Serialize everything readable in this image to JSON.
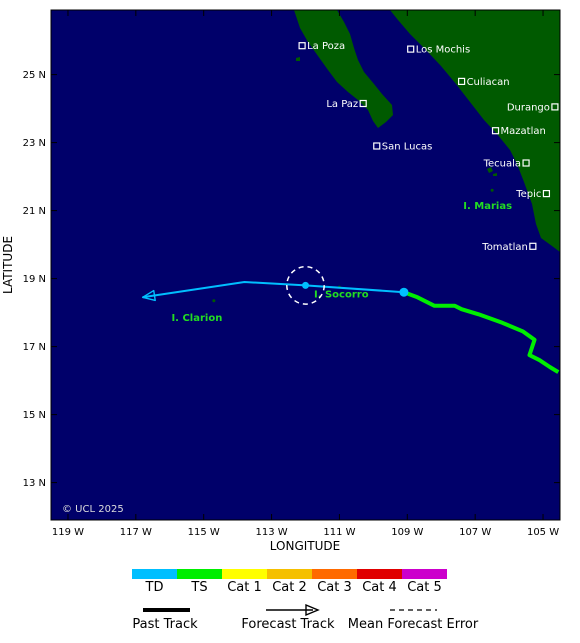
{
  "axes": {
    "xlabel": "LONGITUDE",
    "ylabel": "LATITUDE",
    "lon_range": [
      -119.5,
      -104.5
    ],
    "lat_range": [
      11.9,
      26.9
    ],
    "lon_ticks": [
      {
        "value": -119,
        "label": "119 W"
      },
      {
        "value": -117,
        "label": "117 W"
      },
      {
        "value": -115,
        "label": "115 W"
      },
      {
        "value": -113,
        "label": "113 W"
      },
      {
        "value": -111,
        "label": "111 W"
      },
      {
        "value": -109,
        "label": "109 W"
      },
      {
        "value": -107,
        "label": "107 W"
      },
      {
        "value": -105,
        "label": "105 W"
      }
    ],
    "lat_ticks": [
      {
        "value": 25,
        "label": "25 N"
      },
      {
        "value": 23,
        "label": "23 N"
      },
      {
        "value": 21,
        "label": "21 N"
      },
      {
        "value": 19,
        "label": "19 N"
      },
      {
        "value": 17,
        "label": "17 N"
      },
      {
        "value": 15,
        "label": "15 N"
      },
      {
        "value": 13,
        "label": "13 N"
      }
    ]
  },
  "colors": {
    "ocean": "#00006a",
    "land": "#005a00",
    "frame": "#000000",
    "label": "#ffffff",
    "island_label": "#22dd22",
    "TD": "#00bfff",
    "TS": "#00ee00",
    "Cat 1": "#ffff00",
    "Cat 2": "#f5c000",
    "Cat 3": "#ff6a00",
    "Cat 4": "#e00000",
    "Cat 5": "#cc00cc"
  },
  "cities": [
    {
      "name": "La Poza",
      "lon": -112.1,
      "lat": 25.85,
      "label_side": "right"
    },
    {
      "name": "Los Mochis",
      "lon": -108.9,
      "lat": 25.75,
      "label_side": "right"
    },
    {
      "name": "Culiacan",
      "lon": -107.4,
      "lat": 24.8,
      "label_side": "right"
    },
    {
      "name": "La Paz",
      "lon": -110.3,
      "lat": 24.15,
      "label_side": "left"
    },
    {
      "name": "Durango",
      "lon": -104.65,
      "lat": 24.05,
      "label_side": "left"
    },
    {
      "name": "Mazatlan",
      "lon": -106.4,
      "lat": 23.35,
      "label_side": "right"
    },
    {
      "name": "San Lucas",
      "lon": -109.9,
      "lat": 22.9,
      "label_side": "right"
    },
    {
      "name": "Tecuala",
      "lon": -105.5,
      "lat": 22.4,
      "label_side": "left"
    },
    {
      "name": "Tepic",
      "lon": -104.9,
      "lat": 21.5,
      "label_side": "left"
    },
    {
      "name": "Tomatlan",
      "lon": -105.3,
      "lat": 19.95,
      "label_side": "left"
    }
  ],
  "islands": [
    {
      "name": "I. Socorro",
      "lon": -111.0,
      "lat": 18.75,
      "label_lon": -111.75,
      "label_lat": 18.45
    },
    {
      "name": "I. Clarion",
      "lon": -114.7,
      "lat": 18.35,
      "label_lon": -115.95,
      "label_lat": 17.75
    },
    {
      "name": "I. Marias",
      "lon": -106.5,
      "lat": 21.6,
      "label_lon": -107.35,
      "label_lat": 21.05
    }
  ],
  "past_track": {
    "points": [
      {
        "lon": -104.55,
        "lat": 16.25
      },
      {
        "lon": -104.8,
        "lat": 16.4
      },
      {
        "lon": -105.1,
        "lat": 16.6
      },
      {
        "lon": -105.4,
        "lat": 16.75
      },
      {
        "lon": -105.25,
        "lat": 17.2
      },
      {
        "lon": -105.6,
        "lat": 17.45
      },
      {
        "lon": -106.2,
        "lat": 17.7
      },
      {
        "lon": -106.9,
        "lat": 17.95
      },
      {
        "lon": -107.4,
        "lat": 18.1
      },
      {
        "lon": -107.6,
        "lat": 18.2
      },
      {
        "lon": -108.2,
        "lat": 18.2
      },
      {
        "lon": -108.7,
        "lat": 18.45
      },
      {
        "lon": -109.1,
        "lat": 18.6
      }
    ],
    "category": "TS"
  },
  "forecast_track": {
    "points": [
      {
        "lon": -109.1,
        "lat": 18.6
      },
      {
        "lon": -112.0,
        "lat": 18.8
      },
      {
        "lon": -113.8,
        "lat": 18.9
      },
      {
        "lon": -116.8,
        "lat": 18.45
      }
    ],
    "category": "TD",
    "current_position": {
      "lon": -109.1,
      "lat": 18.6
    },
    "forecast_points": [
      {
        "lon": -112.0,
        "lat": 18.8
      }
    ]
  },
  "forecast_error": {
    "lon": -112.0,
    "lat": 18.8,
    "radius_deg": 0.55
  },
  "copyright": "© UCL 2025",
  "legend": {
    "categories": [
      "TD",
      "TS",
      "Cat 1",
      "Cat 2",
      "Cat 3",
      "Cat 4",
      "Cat 5"
    ],
    "past_track_label": "Past Track",
    "forecast_track_label": "Forecast Track",
    "error_label": "Mean Forecast Error"
  }
}
